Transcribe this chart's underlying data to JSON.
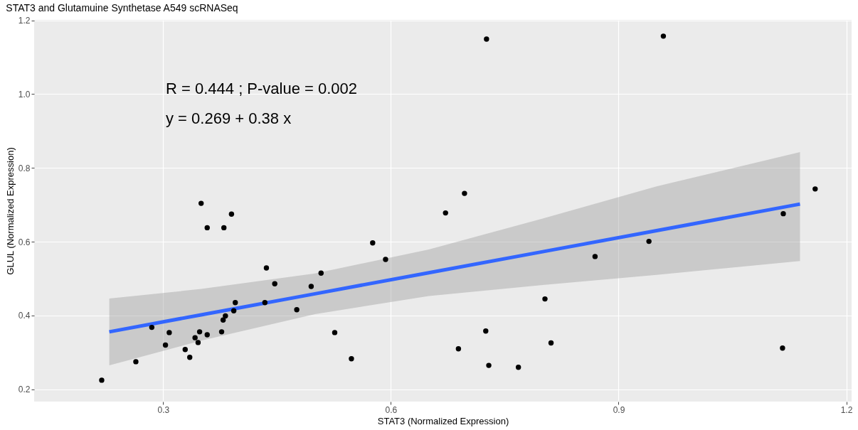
{
  "chart_data": {
    "type": "scatter",
    "title": "STAT3 and Glutamuine Synthetase A549 scRNASeq",
    "xlabel": "STAT3 (Normalized Expression)",
    "ylabel": "GLUL (Normalized Expression)",
    "annotations": [
      "R =  0.444 ; P-value =  0.002",
      "y =  0.269  +  0.38 x"
    ],
    "xlim": [
      0.13,
      1.207
    ],
    "ylim": [
      0.167,
      1.201
    ],
    "xticks": [
      0.3,
      0.6,
      0.9,
      1.2
    ],
    "yticks": [
      0.2,
      0.4,
      0.6,
      0.8,
      {
        "value": 1.0,
        "label": "1.0"
      },
      1.2
    ],
    "grid": true,
    "series": [
      {
        "color": "#000000",
        "marker": "circle",
        "x": [
          0.219,
          0.264,
          0.285,
          0.303,
          0.308,
          0.329,
          0.335,
          0.342,
          0.346,
          0.348,
          0.358,
          0.35,
          0.358,
          0.38,
          0.39,
          0.377,
          0.379,
          0.382,
          0.393,
          0.395,
          0.436,
          0.447,
          0.434,
          0.476,
          0.495,
          0.508,
          0.526,
          0.548,
          0.576,
          0.593,
          0.672,
          0.697,
          0.689,
          0.725,
          0.729,
          0.768,
          0.803,
          0.811,
          0.869,
          0.94,
          1.117,
          1.116,
          1.159,
          0.726,
          0.959
        ],
        "values": [
          0.225,
          0.275,
          0.368,
          0.32,
          0.354,
          0.308,
          0.287,
          0.34,
          0.327,
          0.356,
          0.348,
          0.704,
          0.638,
          0.638,
          0.675,
          0.356,
          0.388,
          0.399,
          0.413,
          0.435,
          0.529,
          0.486,
          0.435,
          0.416,
          0.479,
          0.515,
          0.354,
          0.283,
          0.597,
          0.552,
          0.678,
          0.731,
          0.31,
          0.358,
          0.265,
          0.26,
          0.445,
          0.326,
          0.56,
          0.601,
          0.676,
          0.312,
          0.743,
          1.149,
          1.157
        ]
      },
      {
        "type": "line",
        "color": "#3366ff",
        "line_style": "solid",
        "marker": "none",
        "x": [
          0.229,
          0.35,
          0.5,
          0.65,
          0.8,
          0.95,
          1.139
        ],
        "values": [
          0.356,
          0.402,
          0.459,
          0.516,
          0.573,
          0.63,
          0.702
        ],
        "lower": [
          0.265,
          0.332,
          0.404,
          0.453,
          0.483,
          0.51,
          0.548
        ],
        "upper": [
          0.446,
          0.472,
          0.514,
          0.579,
          0.663,
          0.75,
          0.843
        ]
      }
    ]
  }
}
